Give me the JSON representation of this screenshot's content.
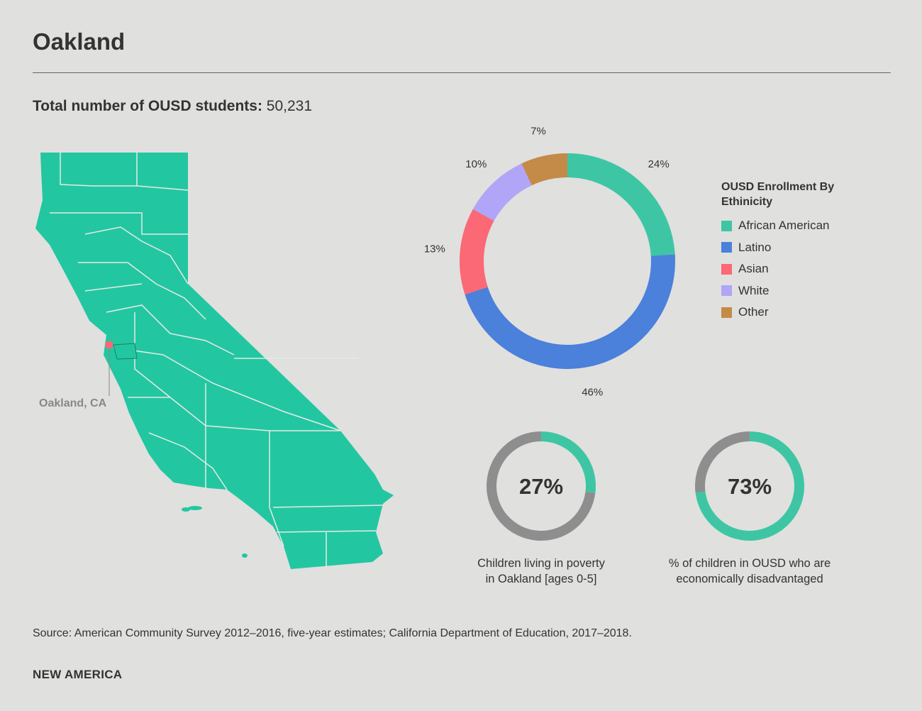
{
  "title": "Oakland",
  "total": {
    "label": "Total number of OUSD students:",
    "value": "50,231"
  },
  "map": {
    "marker_label": "Oakland, CA",
    "land_color": "#22c7a1",
    "marker_color": "#fb6876"
  },
  "chart_data": [
    {
      "type": "pie",
      "style": "donut",
      "legend_title": "OUSD Enrollment By Ethinicity",
      "legend_placement": "right",
      "categories": [
        "African American",
        "Latino",
        "Asian",
        "White",
        "Other"
      ],
      "values": [
        24,
        46,
        13,
        10,
        7
      ],
      "labels": [
        "24%",
        "46%",
        "13%",
        "10%",
        "7%"
      ],
      "colors": [
        "#3ec6a4",
        "#4b80db",
        "#fb6876",
        "#b0a5f7",
        "#c48a48"
      ]
    },
    {
      "type": "pie",
      "style": "donut",
      "value": 27,
      "label": "27%",
      "caption_line1": "Children living in poverty",
      "caption_line2": "in Oakland [ages 0-5]",
      "colors": [
        "#3ec6a4",
        "#8e8e8e"
      ]
    },
    {
      "type": "pie",
      "style": "donut",
      "value": 73,
      "label": "73%",
      "caption_line1": "% of children in OUSD who are",
      "caption_line2": "economically disadvantaged",
      "colors": [
        "#3ec6a4",
        "#8e8e8e"
      ]
    }
  ],
  "source": "Source: American Community Survey 2012–2016, five-year estimates; California Department of Education, 2017–2018.",
  "brand": "NEW AMERICA"
}
